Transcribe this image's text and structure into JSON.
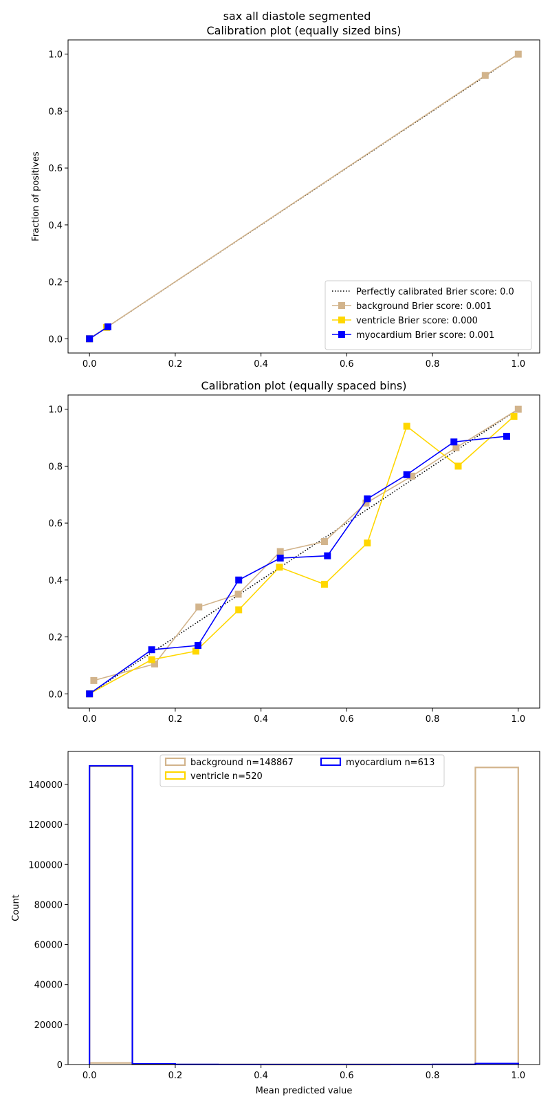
{
  "figure": {
    "suptitle": "sax all diastole segmented"
  },
  "colors": {
    "background": "#d2b48c",
    "ventricle": "#ffd700",
    "myocardium": "#0000ff",
    "perfect": "#000000"
  },
  "chart_data": [
    {
      "type": "line",
      "title": "Calibration plot (equally sized bins)",
      "xlabel": "",
      "ylabel": "Fraction of positives",
      "xlim": [
        -0.05,
        1.05
      ],
      "ylim": [
        -0.05,
        1.05
      ],
      "xticks": [
        "0.0",
        "0.2",
        "0.4",
        "0.6",
        "0.8",
        "1.0"
      ],
      "yticks": [
        "0.0",
        "0.2",
        "0.4",
        "0.6",
        "0.8",
        "1.0"
      ],
      "grid": false,
      "legend_position": "lower right",
      "legend": [
        "Perfectly calibrated Brier score: 0.0",
        "background Brier score: 0.001",
        "ventricle Brier score: 0.000",
        "myocardium Brier score: 0.001"
      ],
      "series": [
        {
          "name": "Perfectly calibrated Brier score: 0.0",
          "style": "dotted",
          "x": [
            0,
            1
          ],
          "y": [
            0,
            1
          ]
        },
        {
          "name": "background Brier score: 0.001",
          "x": [
            0.0,
            0.923,
            1.0
          ],
          "y": [
            0.0,
            0.925,
            1.0
          ]
        },
        {
          "name": "ventricle Brier score: 0.000",
          "x": [
            0.0,
            0.04
          ],
          "y": [
            0.0,
            0.04
          ]
        },
        {
          "name": "myocardium Brier score: 0.001",
          "x": [
            0.0,
            0.043
          ],
          "y": [
            0.0,
            0.042
          ]
        }
      ]
    },
    {
      "type": "line",
      "title": "Calibration plot (equally spaced bins)",
      "xlabel": "",
      "ylabel": "",
      "xlim": [
        -0.05,
        1.05
      ],
      "ylim": [
        -0.05,
        1.05
      ],
      "xticks": [
        "0.0",
        "0.2",
        "0.4",
        "0.6",
        "0.8",
        "1.0"
      ],
      "yticks": [
        "0.0",
        "0.2",
        "0.4",
        "0.6",
        "0.8",
        "1.0"
      ],
      "grid": false,
      "series": [
        {
          "name": "Perfectly calibrated Brier score: 0.0",
          "style": "dotted",
          "x": [
            0,
            1
          ],
          "y": [
            0,
            1
          ]
        },
        {
          "name": "background Brier score: 0.001",
          "x": [
            0.01,
            0.152,
            0.255,
            0.347,
            0.445,
            0.548,
            0.645,
            0.752,
            0.855,
            1.0
          ],
          "y": [
            0.047,
            0.105,
            0.305,
            0.35,
            0.5,
            0.535,
            0.67,
            0.765,
            0.865,
            1.0
          ]
        },
        {
          "name": "ventricle Brier score: 0.000",
          "x": [
            0.0,
            0.145,
            0.248,
            0.348,
            0.443,
            0.548,
            0.648,
            0.74,
            0.86,
            0.99
          ],
          "y": [
            0.0,
            0.12,
            0.15,
            0.295,
            0.445,
            0.385,
            0.53,
            0.94,
            0.8,
            0.975
          ]
        },
        {
          "name": "myocardium Brier score: 0.001",
          "x": [
            0.0,
            0.145,
            0.253,
            0.348,
            0.445,
            0.555,
            0.648,
            0.74,
            0.85,
            0.973
          ],
          "y": [
            0.0,
            0.155,
            0.17,
            0.4,
            0.477,
            0.485,
            0.685,
            0.77,
            0.885,
            0.905
          ]
        }
      ]
    },
    {
      "type": "bar",
      "title": "",
      "xlabel": "Mean predicted value",
      "ylabel": "Count",
      "xlim": [
        -0.05,
        1.05
      ],
      "ylim": [
        0,
        156500
      ],
      "xticks": [
        "0.0",
        "0.2",
        "0.4",
        "0.6",
        "0.8",
        "1.0"
      ],
      "yticks": [
        "0",
        "20000",
        "40000",
        "60000",
        "80000",
        "100000",
        "120000",
        "140000"
      ],
      "grid": false,
      "histtype": "step",
      "bin_edges": [
        0.0,
        0.1,
        0.2,
        0.3,
        0.4,
        0.5,
        0.6,
        0.7,
        0.8,
        0.9,
        1.0
      ],
      "legend_position": "upper center",
      "legend": [
        "background n=148867",
        "ventricle n=520",
        "myocardium n=613"
      ],
      "series": [
        {
          "name": "background n=148867",
          "counts": [
            800,
            80,
            30,
            20,
            15,
            15,
            20,
            25,
            40,
            148500
          ]
        },
        {
          "name": "ventricle n=520",
          "counts": [
            149100,
            60,
            20,
            15,
            10,
            10,
            10,
            15,
            20,
            350
          ]
        },
        {
          "name": "myocardium n=613",
          "counts": [
            149300,
            300,
            40,
            20,
            15,
            15,
            20,
            30,
            60,
            500
          ]
        }
      ]
    }
  ]
}
